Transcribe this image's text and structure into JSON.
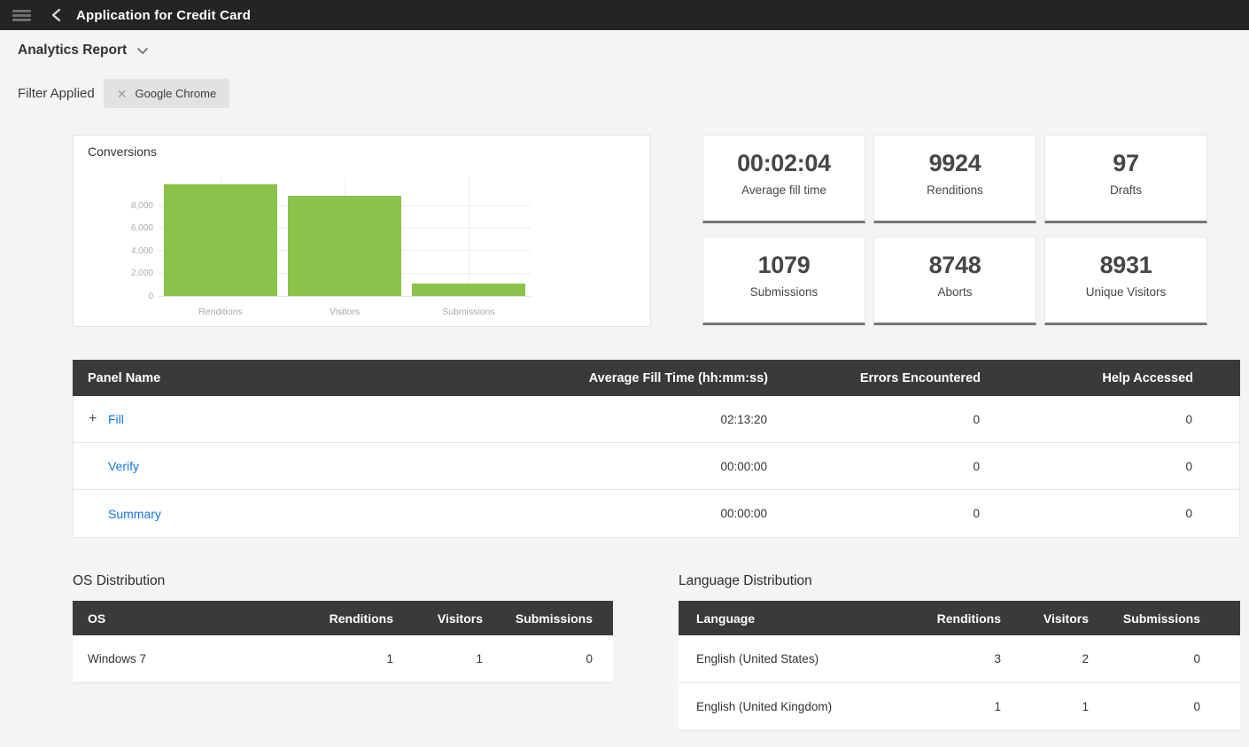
{
  "topbar": {
    "title": "Application for Credit Card"
  },
  "report_selector": {
    "label": "Analytics Report"
  },
  "filter_bar": {
    "label": "Filter Applied",
    "chip": {
      "label": "Google Chrome",
      "remove_glyph": "✕"
    }
  },
  "chart_data": {
    "type": "bar",
    "title": "Conversions",
    "categories": [
      "Renditions",
      "Visitors",
      "Submissions"
    ],
    "values": [
      9924,
      8931,
      1079
    ],
    "xlabel": "",
    "ylabel": "",
    "ylim": [
      0,
      10500
    ],
    "yticks": [
      0,
      2000,
      4000,
      6000,
      8000
    ],
    "ytick_labels": [
      "0",
      "2,000",
      "4,000",
      "6,000",
      "8,000"
    ],
    "grid": true,
    "legend_position": "none",
    "bar_color": "#8BC34A"
  },
  "stats": [
    {
      "value": "00:02:04",
      "label": "Average fill time"
    },
    {
      "value": "9924",
      "label": "Renditions"
    },
    {
      "value": "97",
      "label": "Drafts"
    },
    {
      "value": "1079",
      "label": "Submissions"
    },
    {
      "value": "8748",
      "label": "Aborts"
    },
    {
      "value": "8931",
      "label": "Unique Visitors"
    }
  ],
  "panel_table": {
    "headers": [
      "Panel Name",
      "Average Fill Time (hh:mm:ss)",
      "Errors Encountered",
      "Help Accessed"
    ],
    "rows": [
      {
        "expand_glyph": "+",
        "name": "Fill",
        "avg_fill_time": "02:13:20",
        "errors": "0",
        "help": "0"
      },
      {
        "expand_glyph": "",
        "name": "Verify",
        "avg_fill_time": "00:00:00",
        "errors": "0",
        "help": "0"
      },
      {
        "expand_glyph": "",
        "name": "Summary",
        "avg_fill_time": "00:00:00",
        "errors": "0",
        "help": "0"
      }
    ]
  },
  "os_distribution": {
    "title": "OS Distribution",
    "headers": [
      "OS",
      "Renditions",
      "Visitors",
      "Submissions"
    ],
    "rows": [
      {
        "name": "Windows 7",
        "renditions": "1",
        "visitors": "1",
        "submissions": "0"
      }
    ]
  },
  "language_distribution": {
    "title": "Language Distribution",
    "headers": [
      "Language",
      "Renditions",
      "Visitors",
      "Submissions"
    ],
    "rows": [
      {
        "name": "English (United States)",
        "renditions": "3",
        "visitors": "2",
        "submissions": "0"
      },
      {
        "name": "English (United Kingdom)",
        "renditions": "1",
        "visitors": "1",
        "submissions": "0"
      }
    ]
  },
  "colors": {
    "accent_green": "#8BC34A",
    "link_blue": "#1473E6",
    "topbar_bg": "#242424",
    "table_header_bg": "#3A3A3A",
    "page_bg": "#F4F4F4"
  }
}
